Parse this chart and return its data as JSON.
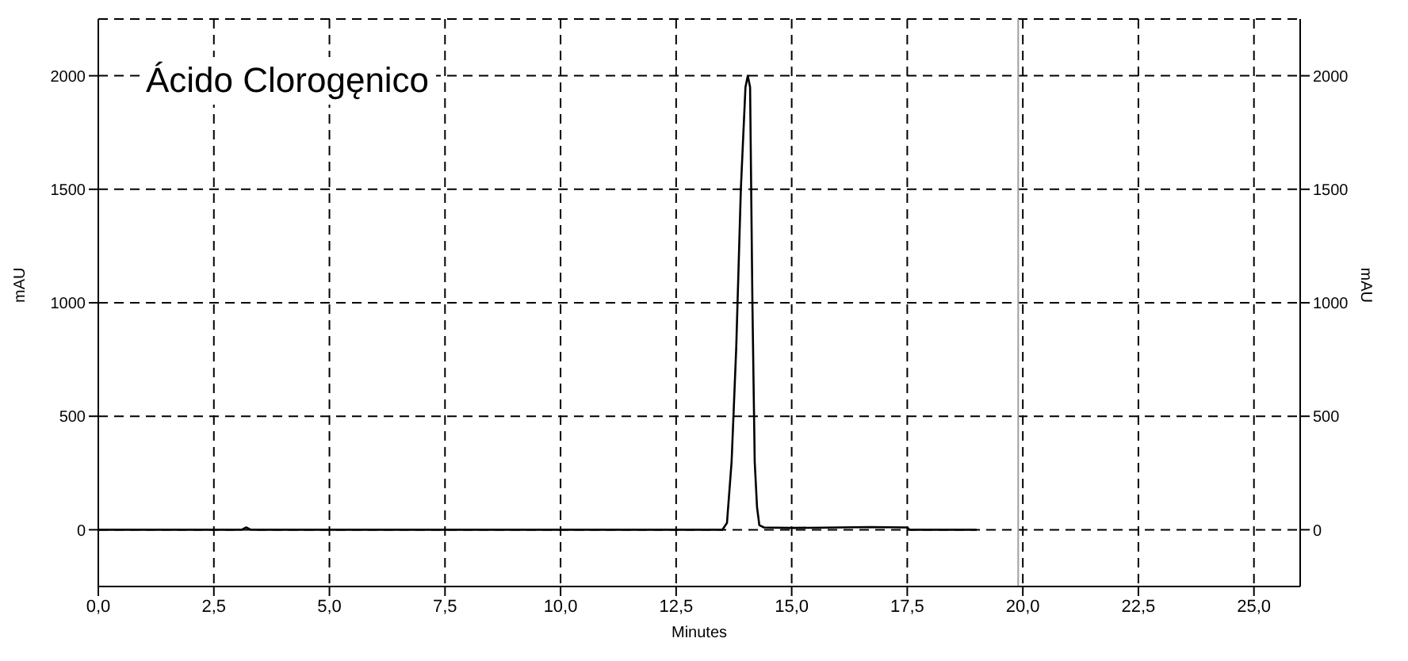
{
  "chart_data": {
    "type": "line",
    "title": "Ácido Clorogęnico",
    "xlabel": "Minutes",
    "ylabel": "mAU",
    "y2label": "mAU",
    "x": [
      0,
      3.1,
      3.2,
      3.3,
      13.5,
      13.6,
      13.7,
      13.8,
      13.9,
      14.0,
      14.05,
      14.1,
      14.15,
      14.2,
      14.25,
      14.3,
      14.4,
      15,
      16,
      16.7,
      17.5,
      17.55,
      19.0
    ],
    "series": [
      {
        "color": "#000000",
        "values": [
          0,
          0,
          10,
          0,
          0,
          30,
          300,
          800,
          1500,
          1950,
          2000,
          1950,
          1000,
          300,
          100,
          20,
          10,
          8,
          10,
          12,
          10,
          0,
          0
        ]
      }
    ],
    "xlim": [
      0,
      26
    ],
    "xticks": [
      {
        "value": 0,
        "label": "0,0"
      },
      {
        "value": 2.5,
        "label": "2,5"
      },
      {
        "value": 5,
        "label": "5,0"
      },
      {
        "value": 7.5,
        "label": "7,5"
      },
      {
        "value": 10,
        "label": "10,0"
      },
      {
        "value": 12.5,
        "label": "12,5"
      },
      {
        "value": 15,
        "label": "15,0"
      },
      {
        "value": 17.5,
        "label": "17,5"
      },
      {
        "value": 20,
        "label": "20,0"
      },
      {
        "value": 22.5,
        "label": "22,5"
      },
      {
        "value": 25,
        "label": "25,0"
      }
    ],
    "ylim": [
      -250,
      2250
    ],
    "yticks": [
      0,
      500,
      1000,
      1500,
      2000
    ],
    "y2lim": [
      -250,
      2250
    ],
    "y2ticks": [
      0,
      500,
      1000,
      1500,
      2000
    ],
    "ref_lines": [
      {
        "axis": "x",
        "value": 19.9,
        "color": "#a0a0a0"
      }
    ],
    "grid": true,
    "legend": false,
    "marker": "none",
    "line_style": "solid"
  }
}
